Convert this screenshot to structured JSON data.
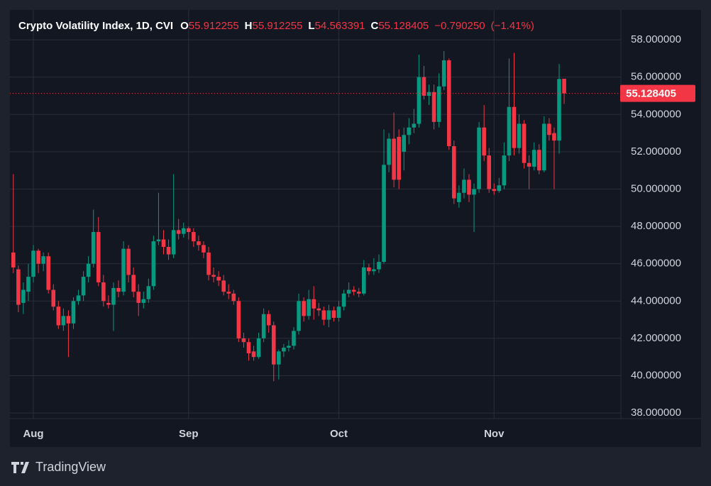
{
  "chart_data": {
    "type": "candlestick",
    "title": "Crypto Volatility Index, 1D, CVI",
    "ohlc_labels": [
      "O",
      "H",
      "L",
      "C"
    ],
    "change": {
      "value": -0.79025,
      "label": "−0.790250"
    },
    "change_percent": {
      "value": -1.41,
      "label": "(−1.41%)"
    },
    "brand": "TradingView",
    "up_color": "#089981",
    "down_color": "#f23645",
    "grid": true,
    "ylim": [
      37.7,
      59.6
    ],
    "yticks": [
      {
        "value": 38,
        "label": "38.000000"
      },
      {
        "value": 40,
        "label": "40.000000"
      },
      {
        "value": 42,
        "label": "42.000000"
      },
      {
        "value": 44,
        "label": "44.000000"
      },
      {
        "value": 46,
        "label": "46.000000"
      },
      {
        "value": 48,
        "label": "48.000000"
      },
      {
        "value": 50,
        "label": "50.000000"
      },
      {
        "value": 52,
        "label": "52.000000"
      },
      {
        "value": 54,
        "label": "54.000000"
      },
      {
        "value": 56,
        "label": "56.000000"
      },
      {
        "value": 58,
        "label": "58.000000"
      }
    ],
    "categories": [
      null,
      null,
      null,
      null,
      "Aug",
      null,
      null,
      null,
      null,
      null,
      null,
      null,
      null,
      null,
      null,
      null,
      null,
      null,
      null,
      null,
      null,
      null,
      null,
      null,
      null,
      null,
      null,
      null,
      null,
      null,
      null,
      null,
      null,
      null,
      null,
      "Sep",
      null,
      null,
      null,
      null,
      null,
      null,
      null,
      null,
      null,
      null,
      null,
      null,
      null,
      null,
      null,
      null,
      null,
      null,
      null,
      null,
      null,
      null,
      null,
      null,
      null,
      null,
      null,
      null,
      null,
      "Oct",
      null,
      null,
      null,
      null,
      null,
      null,
      null,
      null,
      null,
      null,
      null,
      null,
      null,
      null,
      null,
      null,
      null,
      null,
      null,
      null,
      null,
      null,
      null,
      null,
      null,
      null,
      null,
      null,
      null,
      null,
      "Nov",
      null,
      null,
      null,
      null,
      null,
      null,
      null,
      null,
      null,
      null,
      null,
      null,
      null,
      null
    ],
    "open": [
      46.6,
      45.7,
      43.9,
      44.5,
      45.3,
      46.7,
      46.0,
      46.4,
      44.6,
      43.7,
      42.7,
      43.2,
      42.8,
      44.0,
      44.3,
      45.3,
      46.0,
      47.7,
      45.0,
      43.9,
      43.8,
      44.7,
      44.5,
      46.8,
      45.4,
      44.5,
      43.9,
      44.1,
      44.8,
      47.2,
      47.3,
      46.9,
      46.5,
      47.8,
      47.6,
      47.9,
      47.7,
      47.2,
      47.0,
      46.6,
      45.4,
      45.3,
      45.1,
      44.5,
      44.4,
      44.0,
      42.0,
      41.8,
      41.3,
      41.0,
      42.0,
      43.3,
      42.7,
      40.6,
      41.3,
      41.5,
      41.6,
      42.4,
      44.0,
      43.2,
      44.1,
      43.6,
      43.5,
      43.0,
      43.5,
      43.1,
      43.7,
      44.4,
      44.6,
      44.5,
      44.4,
      45.8,
      45.6,
      45.7,
      46.1,
      51.3,
      52.7,
      52.8,
      52.0,
      52.9,
      53.3,
      53.5,
      56.0,
      55.0,
      55.2,
      53.6,
      55.5,
      56.9,
      52.3,
      49.3,
      49.8,
      50.5,
      49.7,
      50.0,
      53.3,
      51.8,
      50.0,
      49.9,
      50.2,
      51.8,
      54.4,
      52.2,
      53.5,
      51.4,
      51.2,
      52.1,
      51.0,
      53.5,
      53.0,
      52.6,
      55.912255
    ],
    "high": [
      50.8,
      45.9,
      45.0,
      46.0,
      47.0,
      46.8,
      46.6,
      46.6,
      44.9,
      44.0,
      43.6,
      43.5,
      44.2,
      44.6,
      45.6,
      46.4,
      48.9,
      48.5,
      45.4,
      44.3,
      45.0,
      45.1,
      47.2,
      47.0,
      45.8,
      44.9,
      44.5,
      45.2,
      47.5,
      49.8,
      47.8,
      47.3,
      50.8,
      48.4,
      48.2,
      48.0,
      47.9,
      47.5,
      47.2,
      46.9,
      45.8,
      45.6,
      45.4,
      44.9,
      44.6,
      44.2,
      42.3,
      42.0,
      41.6,
      42.3,
      43.6,
      43.5,
      42.9,
      41.4,
      41.7,
      41.9,
      42.6,
      44.4,
      44.2,
      44.6,
      44.8,
      43.9,
      43.7,
      43.8,
      43.7,
      44.0,
      44.6,
      45.0,
      44.8,
      44.7,
      46.2,
      46.0,
      46.3,
      46.5,
      53.2,
      53.0,
      54.1,
      53.2,
      53.3,
      53.8,
      54.3,
      57.2,
      56.6,
      55.6,
      55.6,
      56.2,
      57.4,
      57.0,
      52.6,
      50.2,
      51.1,
      50.8,
      50.3,
      53.6,
      54.5,
      52.2,
      50.3,
      50.6,
      52.5,
      57.0,
      57.3,
      54.0,
      53.7,
      51.8,
      52.5,
      52.4,
      53.9,
      53.8,
      53.3,
      56.7,
      55.912255
    ],
    "low": [
      45.5,
      43.4,
      43.3,
      44.0,
      45.0,
      45.5,
      45.6,
      44.4,
      43.5,
      42.5,
      42.4,
      41.0,
      42.5,
      43.8,
      44.0,
      45.0,
      45.8,
      44.8,
      43.7,
      43.6,
      42.4,
      44.2,
      44.3,
      45.0,
      44.2,
      43.2,
      43.6,
      43.9,
      44.6,
      47.0,
      46.5,
      46.2,
      46.3,
      47.3,
      47.4,
      47.3,
      46.9,
      46.7,
      46.3,
      45.1,
      45.0,
      44.8,
      44.3,
      44.1,
      43.8,
      41.8,
      41.5,
      40.8,
      40.8,
      40.9,
      41.8,
      42.3,
      39.7,
      39.8,
      41.0,
      41.3,
      41.4,
      42.2,
      42.9,
      43.0,
      43.0,
      43.2,
      42.7,
      42.6,
      42.9,
      42.9,
      43.5,
      44.2,
      44.3,
      44.2,
      44.3,
      45.4,
      45.4,
      45.5,
      46.0,
      50.9,
      50.1,
      50.0,
      51.0,
      52.4,
      53.0,
      53.3,
      54.8,
      54.5,
      53.2,
      53.3,
      55.3,
      52.1,
      49.2,
      49.0,
      49.5,
      49.3,
      47.7,
      49.8,
      51.5,
      49.8,
      49.7,
      49.8,
      50.0,
      51.5,
      51.8,
      51.9,
      51.1,
      50.0,
      51.0,
      50.8,
      50.9,
      52.6,
      50.0,
      51.9,
      54.563391
    ],
    "close": [
      45.8,
      43.8,
      44.6,
      45.3,
      46.7,
      46.0,
      46.4,
      44.6,
      43.7,
      42.7,
      43.2,
      42.8,
      44.0,
      44.3,
      45.3,
      46.0,
      47.7,
      45.0,
      44.0,
      43.8,
      44.7,
      44.5,
      46.8,
      45.4,
      44.5,
      43.9,
      44.1,
      44.8,
      47.2,
      47.3,
      46.9,
      46.5,
      47.8,
      47.6,
      47.9,
      47.7,
      47.2,
      47.0,
      46.6,
      45.4,
      45.3,
      45.1,
      44.5,
      44.4,
      44.0,
      42.0,
      41.8,
      41.2,
      41.0,
      42.0,
      43.3,
      42.7,
      40.6,
      41.3,
      41.5,
      41.6,
      42.4,
      44.0,
      43.2,
      44.1,
      43.6,
      43.5,
      43.0,
      43.5,
      43.1,
      43.7,
      44.4,
      44.6,
      44.5,
      44.4,
      45.8,
      45.6,
      45.7,
      46.1,
      51.3,
      52.7,
      50.5,
      50.5,
      52.9,
      53.3,
      53.5,
      56.0,
      55.0,
      55.2,
      53.6,
      55.5,
      56.9,
      52.3,
      49.5,
      49.8,
      50.5,
      49.7,
      50.0,
      53.3,
      51.8,
      50.0,
      49.9,
      50.2,
      51.8,
      54.4,
      52.2,
      53.5,
      51.4,
      51.2,
      52.1,
      51.0,
      53.5,
      52.9,
      52.6,
      55.9,
      55.128405
    ]
  }
}
